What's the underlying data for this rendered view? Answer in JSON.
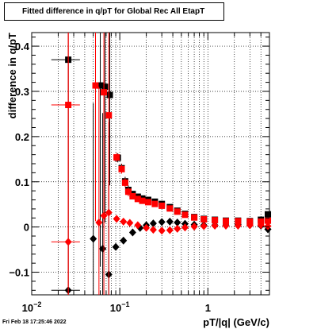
{
  "chart_data": {
    "type": "scatter",
    "title": "Fitted difference in q/pT for Global Rec All EtapT",
    "xlabel": "pT/|q| (GeV/c)",
    "ylabel": "difference in q/pT",
    "x_scale": "log",
    "xlim": [
      0.01,
      5
    ],
    "ylim": [
      -0.15,
      0.43
    ],
    "grid": true,
    "x_ticks": [
      {
        "value": 0.01,
        "base": "10",
        "exp": "−2"
      },
      {
        "value": 0.1,
        "base": "10",
        "exp": "−1"
      },
      {
        "value": 1,
        "base": "1",
        "exp": ""
      }
    ],
    "y_ticks": [
      {
        "value": -0.1,
        "label": "−0.1"
      },
      {
        "value": 0,
        "label": "0"
      },
      {
        "value": 0.1,
        "label": "0.1"
      },
      {
        "value": 0.2,
        "label": "0.2"
      },
      {
        "value": 0.3,
        "label": "0.3"
      },
      {
        "value": 0.4,
        "label": "0.4"
      }
    ],
    "series": [
      {
        "color": "#000000",
        "points": [
          {
            "x": 0.026,
            "y": 0.37,
            "xerr": [
              0.0093,
              0.0093
            ],
            "yerr": 0.5,
            "marker": "square"
          },
          {
            "x": 0.06,
            "y": 0.313,
            "xerr": [
              0.005,
              0.005
            ],
            "yerr": 0.4,
            "marker": "square"
          },
          {
            "x": 0.068,
            "y": 0.31,
            "xerr": [
              0.004,
              0.004
            ],
            "yerr": 0.3,
            "marker": "square"
          },
          {
            "x": 0.077,
            "y": 0.292,
            "xerr": [
              0.004,
              0.004
            ],
            "yerr": 0.2,
            "marker": "square"
          },
          {
            "x": 0.095,
            "y": 0.153,
            "xerr": [
              0.005,
              0.005
            ],
            "yerr": 0.01,
            "marker": "square"
          },
          {
            "x": 0.105,
            "y": 0.13,
            "xerr": [
              0.005,
              0.005
            ],
            "yerr": 0.01,
            "marker": "square"
          },
          {
            "x": 0.115,
            "y": 0.101,
            "xerr": [
              0.005,
              0.005
            ],
            "yerr": 0.01,
            "marker": "square"
          },
          {
            "x": 0.125,
            "y": 0.082,
            "xerr": [
              0.005,
              0.005
            ],
            "yerr": 0.01,
            "marker": "square"
          },
          {
            "x": 0.14,
            "y": 0.073,
            "marker": "square"
          },
          {
            "x": 0.16,
            "y": 0.067,
            "marker": "square"
          },
          {
            "x": 0.18,
            "y": 0.063,
            "marker": "square"
          },
          {
            "x": 0.21,
            "y": 0.06,
            "marker": "square"
          },
          {
            "x": 0.25,
            "y": 0.056,
            "marker": "square"
          },
          {
            "x": 0.3,
            "y": 0.051,
            "marker": "square"
          },
          {
            "x": 0.37,
            "y": 0.044,
            "marker": "square"
          },
          {
            "x": 0.45,
            "y": 0.036,
            "marker": "square"
          },
          {
            "x": 0.55,
            "y": 0.029,
            "marker": "square"
          },
          {
            "x": 0.7,
            "y": 0.022,
            "marker": "square"
          },
          {
            "x": 0.9,
            "y": 0.018,
            "marker": "square"
          },
          {
            "x": 1.2,
            "y": 0.016,
            "marker": "square"
          },
          {
            "x": 1.6,
            "y": 0.014,
            "marker": "square"
          },
          {
            "x": 2.2,
            "y": 0.014,
            "marker": "square"
          },
          {
            "x": 3.0,
            "y": 0.013,
            "marker": "square"
          },
          {
            "x": 4.0,
            "y": 0.016,
            "marker": "square"
          },
          {
            "x": 4.8,
            "y": 0.028,
            "marker": "square"
          },
          {
            "x": 0.026,
            "y": -0.14,
            "xerr": [
              0.0093,
              0.0093
            ],
            "yerr": 0.5,
            "marker": "diamond"
          },
          {
            "x": 0.05,
            "y": -0.026,
            "xerr": [
              0.004,
              0.004
            ],
            "yerr": 0.3,
            "marker": "diamond"
          },
          {
            "x": 0.064,
            "y": -0.048,
            "xerr": [
              0.004,
              0.004
            ],
            "yerr": 0.3,
            "marker": "diamond"
          },
          {
            "x": 0.075,
            "y": -0.105,
            "xerr": [
              0.003,
              0.003
            ],
            "yerr": 0.2,
            "marker": "diamond"
          },
          {
            "x": 0.09,
            "y": -0.044,
            "xerr": [
              0.004,
              0.004
            ],
            "yerr": 0.005,
            "marker": "diamond"
          },
          {
            "x": 0.11,
            "y": -0.03,
            "marker": "diamond"
          },
          {
            "x": 0.14,
            "y": -0.012,
            "marker": "diamond"
          },
          {
            "x": 0.17,
            "y": -0.002,
            "marker": "diamond"
          },
          {
            "x": 0.2,
            "y": 0.004,
            "marker": "diamond"
          },
          {
            "x": 0.24,
            "y": 0.008,
            "marker": "diamond"
          },
          {
            "x": 0.3,
            "y": 0.011,
            "marker": "diamond"
          },
          {
            "x": 0.37,
            "y": 0.012,
            "marker": "diamond"
          },
          {
            "x": 0.45,
            "y": 0.01,
            "marker": "diamond"
          },
          {
            "x": 0.55,
            "y": 0.007,
            "marker": "diamond"
          },
          {
            "x": 0.7,
            "y": 0.005,
            "marker": "diamond"
          },
          {
            "x": 0.9,
            "y": 0.004,
            "marker": "diamond"
          },
          {
            "x": 1.2,
            "y": 0.004,
            "marker": "diamond"
          },
          {
            "x": 1.6,
            "y": 0.004,
            "marker": "diamond"
          },
          {
            "x": 2.2,
            "y": 0.005,
            "marker": "diamond"
          },
          {
            "x": 3.0,
            "y": 0.004,
            "marker": "diamond"
          },
          {
            "x": 4.0,
            "y": 0.003,
            "marker": "diamond"
          },
          {
            "x": 4.8,
            "y": -0.005,
            "marker": "diamond"
          }
        ]
      },
      {
        "color": "#ff0000",
        "points": [
          {
            "x": 0.026,
            "y": 0.27,
            "xerr": [
              0.0093,
              0.0093
            ],
            "yerr": 0.5,
            "marker": "square"
          },
          {
            "x": 0.053,
            "y": 0.313,
            "xerr": [
              0.004,
              0.004
            ],
            "yerr": 0.3,
            "marker": "square"
          },
          {
            "x": 0.066,
            "y": 0.298,
            "xerr": [
              0.004,
              0.004
            ],
            "yerr": 0.3,
            "marker": "square"
          },
          {
            "x": 0.075,
            "y": 0.247,
            "xerr": [
              0.003,
              0.003
            ],
            "yerr": 0.2,
            "marker": "square"
          },
          {
            "x": 0.092,
            "y": 0.154,
            "xerr": [
              0.005,
              0.005
            ],
            "yerr": 0.01,
            "marker": "square"
          },
          {
            "x": 0.105,
            "y": 0.128,
            "xerr": [
              0.005,
              0.005
            ],
            "yerr": 0.01,
            "marker": "square"
          },
          {
            "x": 0.115,
            "y": 0.098,
            "xerr": [
              0.005,
              0.005
            ],
            "yerr": 0.01,
            "marker": "square"
          },
          {
            "x": 0.125,
            "y": 0.078,
            "xerr": [
              0.005,
              0.005
            ],
            "yerr": 0.01,
            "marker": "square"
          },
          {
            "x": 0.14,
            "y": 0.068,
            "marker": "square"
          },
          {
            "x": 0.16,
            "y": 0.062,
            "marker": "square"
          },
          {
            "x": 0.18,
            "y": 0.058,
            "marker": "square"
          },
          {
            "x": 0.21,
            "y": 0.055,
            "marker": "square"
          },
          {
            "x": 0.25,
            "y": 0.051,
            "marker": "square"
          },
          {
            "x": 0.3,
            "y": 0.047,
            "marker": "square"
          },
          {
            "x": 0.37,
            "y": 0.041,
            "marker": "square"
          },
          {
            "x": 0.45,
            "y": 0.034,
            "marker": "square"
          },
          {
            "x": 0.55,
            "y": 0.027,
            "marker": "square"
          },
          {
            "x": 0.7,
            "y": 0.021,
            "marker": "square"
          },
          {
            "x": 0.9,
            "y": 0.017,
            "marker": "square"
          },
          {
            "x": 1.2,
            "y": 0.015,
            "marker": "square"
          },
          {
            "x": 1.6,
            "y": 0.013,
            "marker": "square"
          },
          {
            "x": 2.2,
            "y": 0.013,
            "marker": "square"
          },
          {
            "x": 3.0,
            "y": 0.012,
            "marker": "square"
          },
          {
            "x": 4.0,
            "y": 0.012,
            "marker": "square"
          },
          {
            "x": 4.8,
            "y": 0.014,
            "marker": "square"
          },
          {
            "x": 0.026,
            "y": -0.033,
            "xerr": [
              0.0093,
              0.0093
            ],
            "yerr": 0.5,
            "marker": "diamond"
          },
          {
            "x": 0.058,
            "y": 0.01,
            "xerr": [
              0.004,
              0.004
            ],
            "yerr": 0.3,
            "marker": "diamond"
          },
          {
            "x": 0.066,
            "y": 0.025,
            "xerr": [
              0.004,
              0.004
            ],
            "yerr": 0.3,
            "marker": "diamond"
          },
          {
            "x": 0.075,
            "y": 0.032,
            "xerr": [
              0.003,
              0.003
            ],
            "yerr": 0.2,
            "marker": "diamond"
          },
          {
            "x": 0.092,
            "y": 0.018,
            "xerr": [
              0.004,
              0.004
            ],
            "yerr": 0.005,
            "marker": "diamond"
          },
          {
            "x": 0.11,
            "y": 0.012,
            "marker": "diamond"
          },
          {
            "x": 0.13,
            "y": 0.009,
            "marker": "diamond"
          },
          {
            "x": 0.16,
            "y": 0.004,
            "marker": "diamond"
          },
          {
            "x": 0.2,
            "y": -0.002,
            "marker": "diamond"
          },
          {
            "x": 0.24,
            "y": -0.006,
            "marker": "diamond"
          },
          {
            "x": 0.3,
            "y": -0.008,
            "marker": "diamond"
          },
          {
            "x": 0.37,
            "y": -0.007,
            "marker": "diamond"
          },
          {
            "x": 0.45,
            "y": -0.004,
            "marker": "diamond"
          },
          {
            "x": 0.55,
            "y": -0.001,
            "marker": "diamond"
          },
          {
            "x": 0.7,
            "y": 0.001,
            "marker": "diamond"
          },
          {
            "x": 0.9,
            "y": 0.002,
            "marker": "diamond"
          },
          {
            "x": 1.2,
            "y": 0.003,
            "marker": "diamond"
          },
          {
            "x": 1.6,
            "y": 0.003,
            "marker": "diamond"
          },
          {
            "x": 2.2,
            "y": 0.003,
            "marker": "diamond"
          },
          {
            "x": 3.0,
            "y": 0.004,
            "marker": "diamond"
          },
          {
            "x": 4.0,
            "y": 0.004,
            "marker": "diamond"
          },
          {
            "x": 4.8,
            "y": 0.002,
            "marker": "diamond"
          }
        ]
      }
    ]
  },
  "timestamp": "Fri Feb 18 17:25:46 2022"
}
